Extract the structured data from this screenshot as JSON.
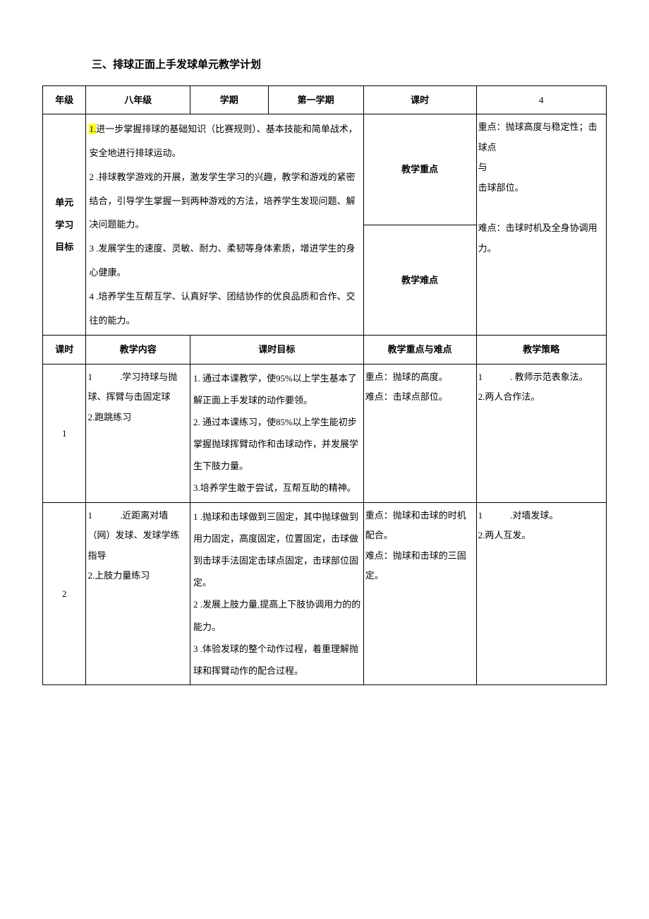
{
  "title": "三、排球正面上手发球单元教学计划",
  "row1": {
    "grade_label": "年级",
    "grade_value": "八年级",
    "term_label": "学期",
    "term_value": "第一学期",
    "hours_label": "课时",
    "hours_value": "4"
  },
  "unit_label": {
    "line1": "单元",
    "line2": "学习",
    "line3": "目标"
  },
  "goals": {
    "highlight": "1.",
    "text1": "进一步掌握排球的基础知识（比赛规则）、基本技能和简单战术，安全地进行排球运动。",
    "text2": "2 .排球教学游戏的开展，激发学生学习的兴趣，教学和游戏的紧密结合，引导学生掌握一到两种游戏的方法，培养学生发现问题、解决问题能力。",
    "text3": "3 .发展学生的速度、灵敏、耐力、柔韧等身体素质，增进学生的身心健康。",
    "text4": "4 .培养学生互帮互学、认真好学、团结协作的优良品质和合作、交往的能力。"
  },
  "focus": {
    "key_label": "教学重点",
    "difficulty_label": "教学难点"
  },
  "key_difficulty_text": {
    "line1": "重点：抛球高度与稳定性；击球点",
    "line2": "与",
    "line3": "击球部位。",
    "line4": "",
    "line5": "难点：击球时机及全身协调用力。"
  },
  "headers": {
    "hours": "课时",
    "content": "教学内容",
    "objective": "课时目标",
    "points": "教学重点与难点",
    "strategy": "教学策略"
  },
  "lesson1": {
    "num": "1",
    "content": "1　　　.学习持球与抛\n球、挥臂与击固定球\n2.跑跳练习",
    "objective": "1. 通过本课教学，使95%以上学生基本了解正面上手发球的动作要领。\n2. 通过本课练习，使85%以上学生能初步掌握抛球挥臂动作和击球动作，并发展学生下肢力量。\n3.培养学生敢于尝试，互帮互助的精神。",
    "points": "重点：抛球的高度。\n难点：击球点部位。",
    "strategy": "1　　　. 教师示范表象法。\n2.两人合作法。"
  },
  "lesson2": {
    "num": "2",
    "content": "1　　　.近距离对墙\n（网）发球、发球学练指导\n2.上肢力量练习",
    "objective": "1 .抛球和击球做到三固定，其中抛球做到用力固定，高度固定，位置固定，击球做到击球手法固定击球点固定，击球部位固定。\n2 .发展上肢力量,提高上下肢协调用力的的能力。\n3 .体验发球的整个动作过程，着重理解抛球和挥臂动作的配合过程。",
    "points": "重点：抛球和击球的时机配合。\n难点：抛球和击球的三固定。",
    "strategy": "1　　　.对墙发球。\n2.两人互发。"
  },
  "colors": {
    "highlight": "#ffff00",
    "border": "#000000",
    "background": "#ffffff",
    "text": "#000000"
  }
}
